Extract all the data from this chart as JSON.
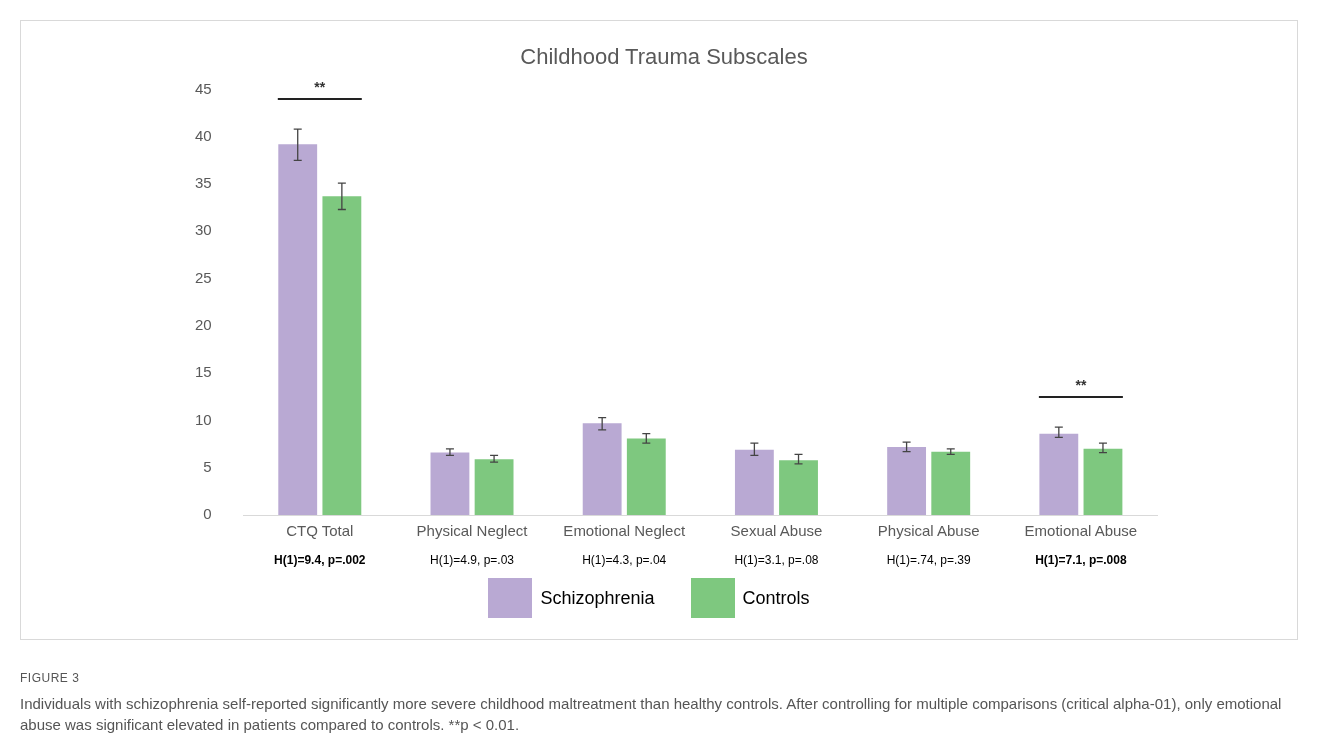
{
  "chart_data": {
    "type": "bar",
    "title": "Childhood Trauma Subscales",
    "categories": [
      "CTQ Total",
      "Physical Neglect",
      "Emotional Neglect",
      "Sexual Abuse",
      "Physical Abuse",
      "Emotional Abuse"
    ],
    "series": [
      {
        "name": "Schizophrenia",
        "color": "#b9a9d3",
        "values": [
          39.2,
          6.6,
          9.7,
          6.9,
          7.2,
          8.6
        ],
        "errors": [
          [
            37.5,
            40.8
          ],
          [
            6.3,
            7.0
          ],
          [
            9.0,
            10.3
          ],
          [
            6.3,
            7.6
          ],
          [
            6.7,
            7.7
          ],
          [
            8.2,
            9.3
          ]
        ]
      },
      {
        "name": "Controls",
        "color": "#7ec87f",
        "values": [
          33.7,
          5.9,
          8.1,
          5.8,
          6.7,
          7.0
        ],
        "errors": [
          [
            32.3,
            35.1
          ],
          [
            5.6,
            6.3
          ],
          [
            7.6,
            8.6
          ],
          [
            5.4,
            6.4
          ],
          [
            6.4,
            7.0
          ],
          [
            6.6,
            7.6
          ]
        ]
      }
    ],
    "ylim": [
      0,
      45
    ],
    "yticks": [
      0,
      5,
      10,
      15,
      20,
      25,
      30,
      35,
      40,
      45
    ],
    "grid": false,
    "legend": "bottom",
    "annotations": [
      "**",
      "**",
      "H(1)=9.4, p=.002",
      "H(1)=4.9, p=.03",
      "H(1)=4.3, p=.04",
      "H(1)=3.1, p=.08",
      "H(1)=.74, p=.39",
      "H(1)=7.1, p=.008",
      "FIGURE 3",
      "Individuals with schizophrenia self-reported significantly more severe childhood maltreatment than healthy controls. After controlling for multiple comparisons (critical alpha-01), only emotional abuse was significant elevated in patients compared to controls. **p < 0.01."
    ]
  }
}
